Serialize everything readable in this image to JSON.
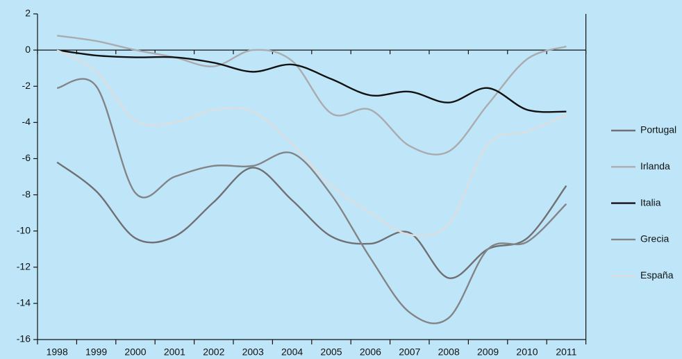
{
  "chart_data": {
    "type": "line",
    "categories": [
      "1998",
      "1999",
      "2000",
      "2001",
      "2002",
      "2003",
      "2004",
      "2005",
      "2006",
      "2007",
      "2008",
      "2009",
      "2010",
      "2011"
    ],
    "series": [
      {
        "name": "Portugal",
        "color": "#6f7073",
        "values": [
          -6.2,
          -7.8,
          -10.4,
          -10.3,
          -8.4,
          -6.5,
          -8.3,
          -10.3,
          -10.7,
          -10.1,
          -12.6,
          -11.0,
          -10.4,
          -7.5
        ]
      },
      {
        "name": "Irlanda",
        "color": "#a9abae",
        "values": [
          0.8,
          0.5,
          0.0,
          -0.4,
          -0.9,
          0.0,
          -0.6,
          -3.5,
          -3.3,
          -5.3,
          -5.6,
          -3.0,
          -0.5,
          0.2
        ]
      },
      {
        "name": "Italia",
        "color": "#111111",
        "values": [
          0.0,
          -0.3,
          -0.4,
          -0.4,
          -0.7,
          -1.2,
          -0.8,
          -1.6,
          -2.5,
          -2.3,
          -2.9,
          -2.1,
          -3.3,
          -3.4
        ]
      },
      {
        "name": "Grecia",
        "color": "#838487",
        "values": [
          -2.1,
          -2.0,
          -7.9,
          -7.0,
          -6.4,
          -6.4,
          -5.7,
          -8.0,
          -11.5,
          -14.5,
          -14.8,
          -11.0,
          -10.6,
          -8.5
        ]
      },
      {
        "name": "España",
        "color": "#dcdddf",
        "values": [
          0.0,
          -1.2,
          -3.9,
          -4.0,
          -3.3,
          -3.4,
          -5.2,
          -7.5,
          -9.0,
          -10.2,
          -9.6,
          -5.2,
          -4.5,
          -3.6
        ]
      }
    ],
    "ylim": [
      -16,
      2
    ],
    "yticks": [
      2,
      0,
      -2,
      -4,
      -6,
      -8,
      -10,
      -12,
      -14,
      -16
    ],
    "legend": "right"
  }
}
